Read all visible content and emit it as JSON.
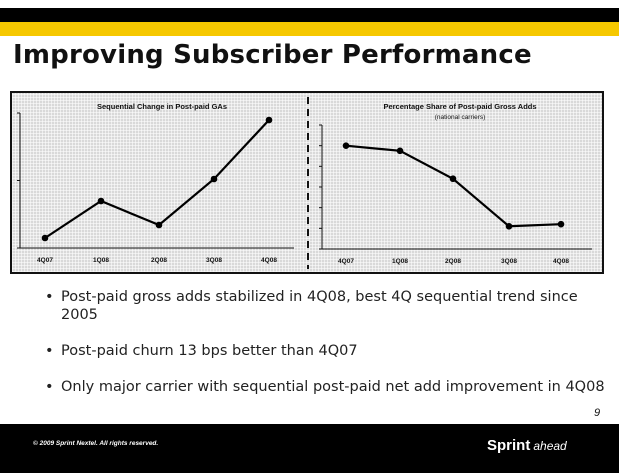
{
  "header": {
    "title": "Improving Subscriber Performance"
  },
  "chart_data": [
    {
      "type": "line",
      "title": "Sequential Change in Post-paid GAs",
      "categories": [
        "4Q07",
        "1Q08",
        "2Q08",
        "3Q08",
        "4Q08"
      ],
      "values": [
        0.1,
        0.47,
        0.23,
        0.69,
        1.28
      ],
      "ylim": [
        0,
        1.35
      ],
      "yticks_labeled": false
    },
    {
      "type": "line",
      "title": "Percentage Share of Post-paid Gross Adds",
      "subtitle": "(national carriers)",
      "categories": [
        "4Q07",
        "1Q08",
        "2Q08",
        "3Q08",
        "4Q08"
      ],
      "values": [
        5.0,
        4.75,
        3.4,
        1.1,
        1.2
      ],
      "ylim": [
        0,
        6
      ],
      "yticks_labeled": false
    }
  ],
  "bullets": [
    "Post-paid gross adds stabilized in 4Q08, best 4Q sequential trend since 2005",
    "Post-paid churn 13 bps better than 4Q07",
    "Only major carrier with sequential post-paid net add improvement in 4Q08"
  ],
  "page_number": "9",
  "footer": {
    "copyright": "© 2009 Sprint Nextel. All rights reserved.",
    "brand": "Sprint",
    "tagline": "ahead"
  }
}
